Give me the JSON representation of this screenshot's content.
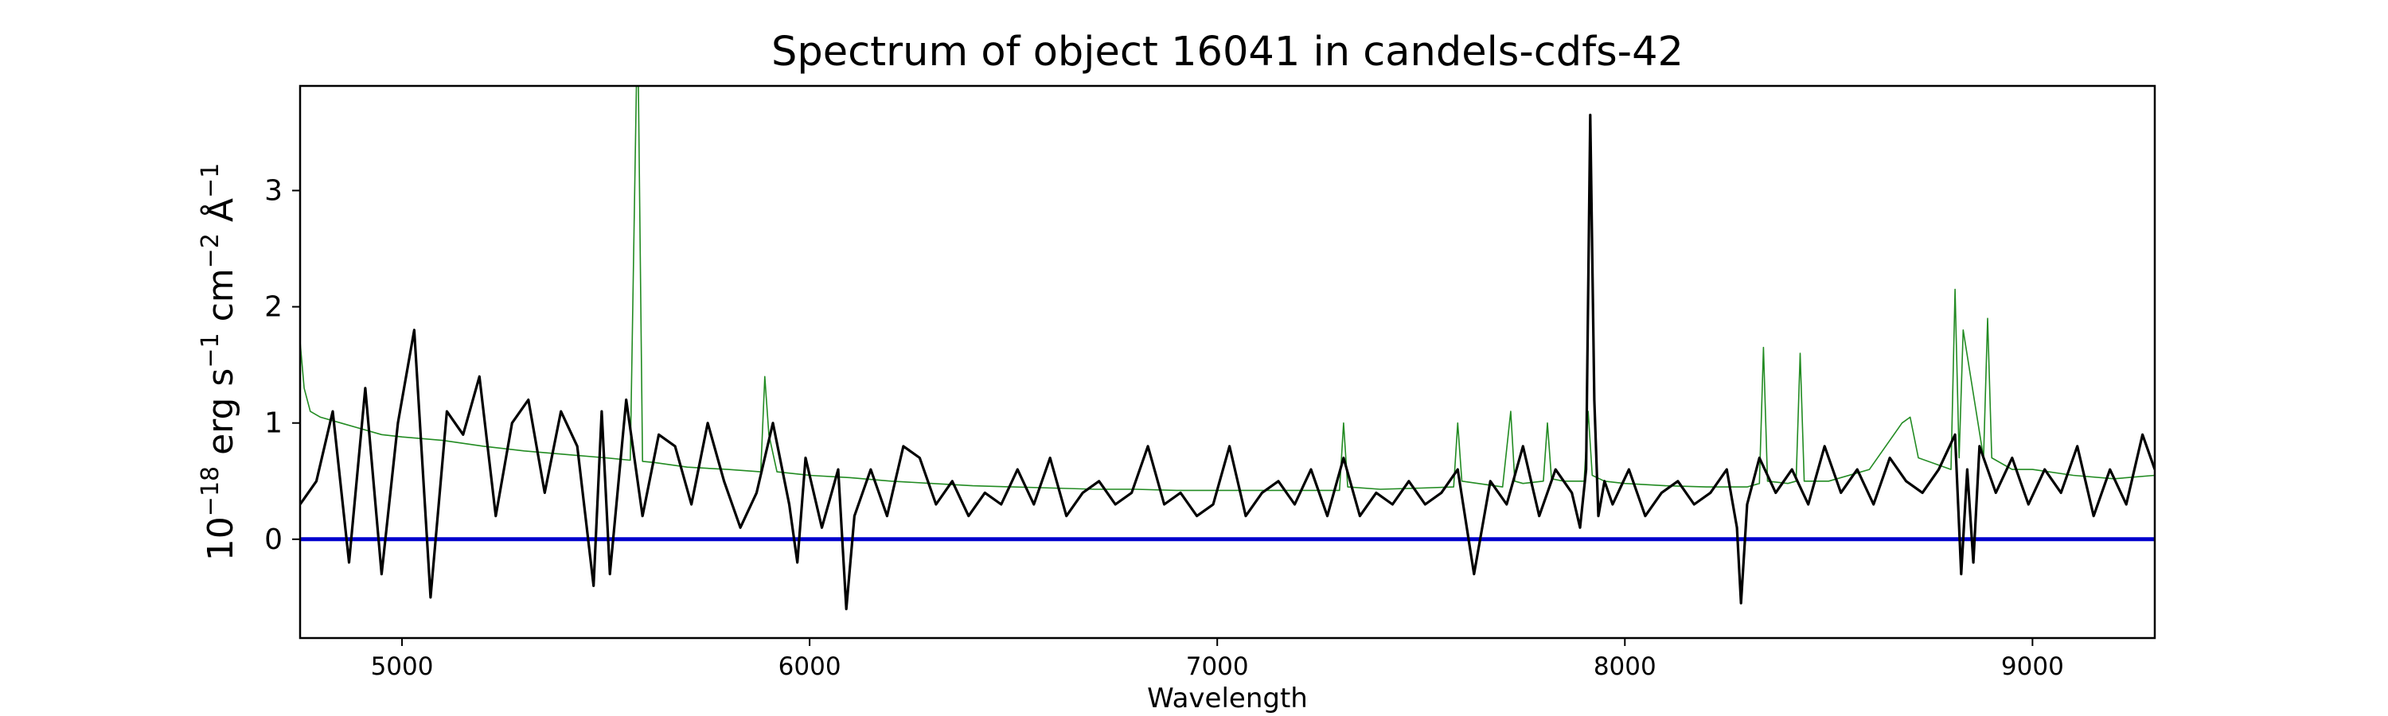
{
  "chart_data": {
    "type": "line",
    "title": "Spectrum of object 16041 in candels-cdfs-42",
    "xlabel": "Wavelength",
    "ylabel_parts": [
      "10",
      "−18",
      " erg s",
      "−1",
      " cm",
      "−2",
      " Å",
      "−1"
    ],
    "xlim": [
      4750,
      9300
    ],
    "ylim": [
      -0.85,
      3.9
    ],
    "x_ticks": [
      5000,
      6000,
      7000,
      8000,
      9000
    ],
    "y_ticks": [
      0,
      1,
      2,
      3
    ],
    "grid": false,
    "legend": "none",
    "colors": {
      "spectrum": "#000000",
      "model": "#228b22",
      "zero_line": "#0000cd"
    },
    "series": [
      {
        "role": "spectrum",
        "x": [
          4750,
          4790,
          4830,
          4870,
          4910,
          4950,
          4990,
          5030,
          5070,
          5110,
          5150,
          5190,
          5230,
          5270,
          5310,
          5350,
          5390,
          5430,
          5470,
          5490,
          5510,
          5550,
          5590,
          5630,
          5670,
          5710,
          5750,
          5790,
          5830,
          5870,
          5910,
          5950,
          5970,
          5990,
          6030,
          6070,
          6090,
          6110,
          6150,
          6190,
          6230,
          6270,
          6310,
          6350,
          6390,
          6430,
          6470,
          6510,
          6550,
          6590,
          6630,
          6670,
          6710,
          6750,
          6790,
          6830,
          6870,
          6910,
          6950,
          6990,
          7030,
          7070,
          7110,
          7150,
          7190,
          7230,
          7270,
          7310,
          7350,
          7390,
          7430,
          7470,
          7510,
          7550,
          7590,
          7630,
          7670,
          7710,
          7750,
          7790,
          7830,
          7870,
          7890,
          7905,
          7915,
          7925,
          7935,
          7950,
          7970,
          8010,
          8050,
          8090,
          8130,
          8170,
          8210,
          8250,
          8275,
          8285,
          8300,
          8330,
          8370,
          8410,
          8450,
          8490,
          8530,
          8570,
          8610,
          8650,
          8690,
          8730,
          8770,
          8810,
          8825,
          8840,
          8855,
          8870,
          8910,
          8950,
          8990,
          9030,
          9070,
          9110,
          9150,
          9190,
          9230,
          9270,
          9300
        ],
        "y": [
          0.3,
          0.5,
          1.1,
          -0.2,
          1.3,
          -0.3,
          1.0,
          1.8,
          -0.5,
          1.1,
          0.9,
          1.4,
          0.2,
          1.0,
          1.2,
          0.4,
          1.1,
          0.8,
          -0.4,
          1.1,
          -0.3,
          1.2,
          0.2,
          0.9,
          0.8,
          0.3,
          1.0,
          0.5,
          0.1,
          0.4,
          1.0,
          0.3,
          -0.2,
          0.7,
          0.1,
          0.6,
          -0.6,
          0.2,
          0.6,
          0.2,
          0.8,
          0.7,
          0.3,
          0.5,
          0.2,
          0.4,
          0.3,
          0.6,
          0.3,
          0.7,
          0.2,
          0.4,
          0.5,
          0.3,
          0.4,
          0.8,
          0.3,
          0.4,
          0.2,
          0.3,
          0.8,
          0.2,
          0.4,
          0.5,
          0.3,
          0.6,
          0.2,
          0.7,
          0.2,
          0.4,
          0.3,
          0.5,
          0.3,
          0.4,
          0.6,
          -0.3,
          0.5,
          0.3,
          0.8,
          0.2,
          0.6,
          0.4,
          0.1,
          0.6,
          3.65,
          1.2,
          0.2,
          0.5,
          0.3,
          0.6,
          0.2,
          0.4,
          0.5,
          0.3,
          0.4,
          0.6,
          0.1,
          -0.55,
          0.3,
          0.7,
          0.4,
          0.6,
          0.3,
          0.8,
          0.4,
          0.6,
          0.3,
          0.7,
          0.5,
          0.4,
          0.6,
          0.9,
          -0.3,
          0.6,
          -0.2,
          0.8,
          0.4,
          0.7,
          0.3,
          0.6,
          0.4,
          0.8,
          0.2,
          0.6,
          0.3,
          0.9,
          0.6
        ]
      },
      {
        "role": "model",
        "x": [
          4750,
          4760,
          4775,
          4800,
          4850,
          4900,
          4950,
          5000,
          5100,
          5200,
          5300,
          5400,
          5500,
          5560,
          5575,
          5580,
          5590,
          5620,
          5700,
          5800,
          5880,
          5890,
          5900,
          5920,
          6000,
          6100,
          6200,
          6300,
          6400,
          6500,
          6600,
          6700,
          6800,
          6900,
          7000,
          7100,
          7200,
          7300,
          7310,
          7320,
          7400,
          7500,
          7580,
          7590,
          7600,
          7700,
          7720,
          7730,
          7750,
          7800,
          7810,
          7820,
          7850,
          7900,
          7910,
          7920,
          7950,
          8000,
          8100,
          8200,
          8300,
          8330,
          8340,
          8350,
          8400,
          8420,
          8430,
          8440,
          8500,
          8600,
          8680,
          8700,
          8720,
          8800,
          8810,
          8820,
          8830,
          8880,
          8890,
          8900,
          8950,
          9000,
          9100,
          9200,
          9300
        ],
        "y": [
          1.7,
          1.3,
          1.1,
          1.05,
          1.0,
          0.95,
          0.9,
          0.88,
          0.85,
          0.8,
          0.76,
          0.73,
          0.7,
          0.68,
          3.9,
          3.9,
          0.67,
          0.66,
          0.62,
          0.6,
          0.58,
          1.4,
          0.9,
          0.58,
          0.55,
          0.53,
          0.5,
          0.48,
          0.46,
          0.45,
          0.44,
          0.43,
          0.43,
          0.42,
          0.42,
          0.42,
          0.42,
          0.42,
          1.0,
          0.45,
          0.43,
          0.44,
          0.45,
          1.0,
          0.5,
          0.45,
          1.1,
          0.5,
          0.48,
          0.5,
          1.0,
          0.52,
          0.5,
          0.5,
          1.1,
          0.55,
          0.5,
          0.48,
          0.46,
          0.45,
          0.45,
          0.48,
          1.65,
          0.5,
          0.48,
          0.5,
          1.6,
          0.5,
          0.5,
          0.6,
          1.0,
          1.05,
          0.7,
          0.6,
          2.15,
          0.7,
          1.8,
          0.7,
          1.9,
          0.7,
          0.6,
          0.6,
          0.55,
          0.52,
          0.55
        ]
      },
      {
        "role": "zero_line",
        "x": [
          4750,
          9300
        ],
        "y": [
          0,
          0
        ]
      }
    ]
  }
}
